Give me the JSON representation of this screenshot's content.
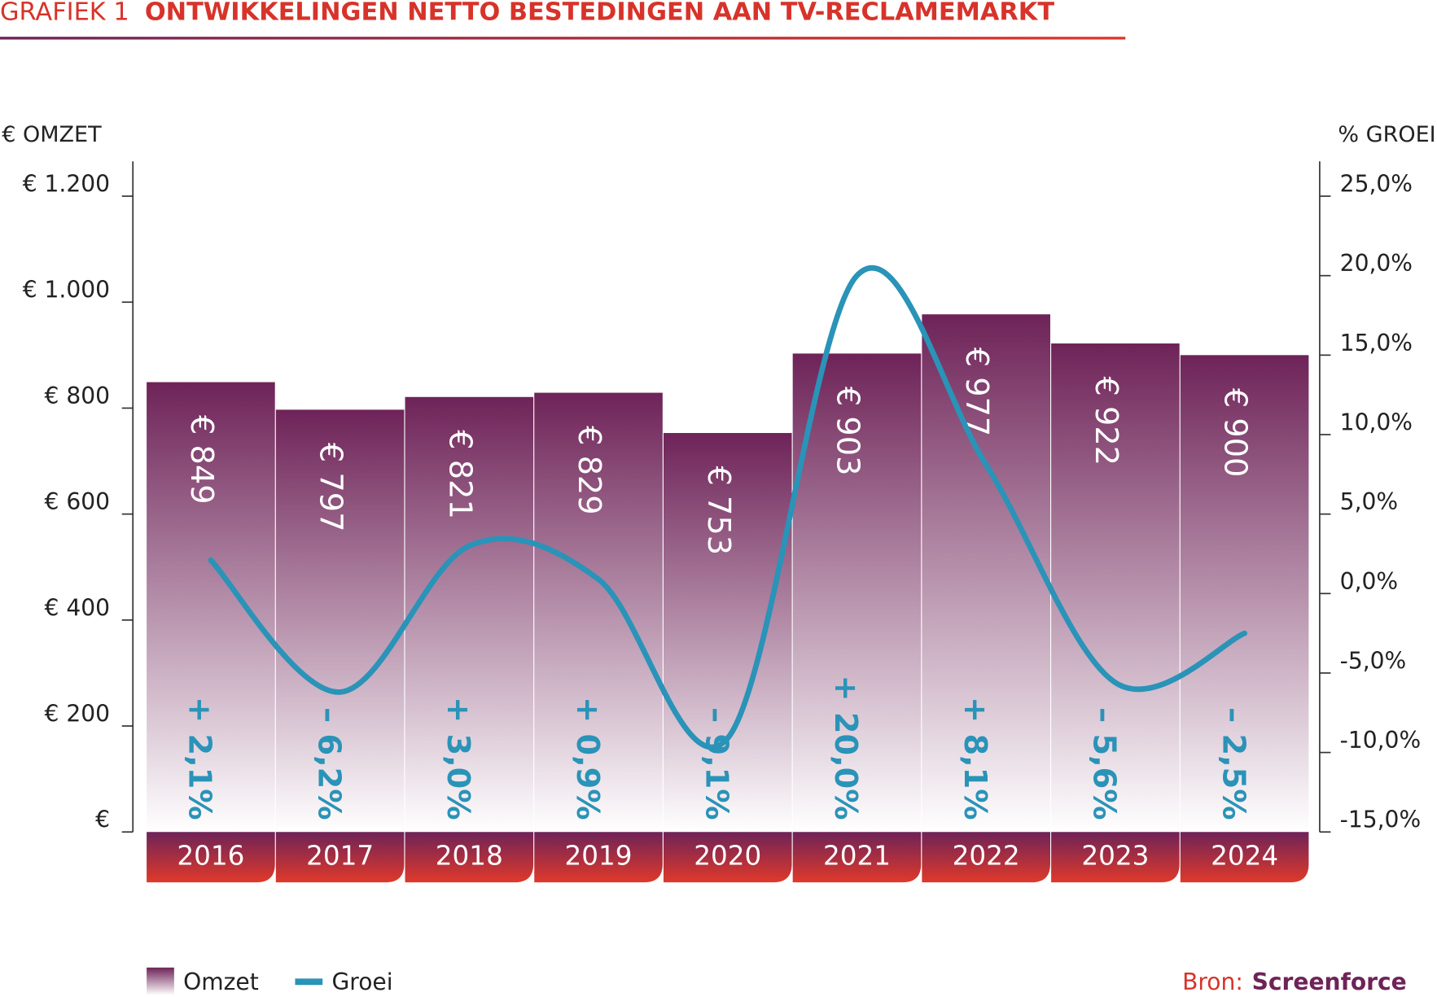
{
  "chart_data": {
    "type": "bar-line",
    "title_prefix": "GRAFIEK 1",
    "title": "ONTWIKKELINGEN NETTO BESTEDINGEN AAN TV-RECLAMEMARKT",
    "y_label": "€ OMZET",
    "y2_label": "% GROEI",
    "source_label": "Bron:",
    "source": "Screenforce",
    "categories": [
      "2016",
      "2017",
      "2018",
      "2019",
      "2020",
      "2021",
      "2022",
      "2023",
      "2024"
    ],
    "series": [
      {
        "name": "Omzet",
        "type": "bar",
        "color": "#6e2358",
        "values": [
          849,
          797,
          821,
          829,
          753,
          903,
          977,
          922,
          900
        ],
        "value_labels": [
          "€ 849",
          "€ 797",
          "€ 821",
          "€ 829",
          "€ 753",
          "€ 903",
          "€ 977",
          "€ 922",
          "€ 900"
        ]
      },
      {
        "name": "Groei",
        "type": "line",
        "axis": "y2",
        "color": "#2a93b8",
        "values": [
          2.1,
          -6.2,
          3.0,
          0.9,
          -9.1,
          20.0,
          8.1,
          -5.6,
          -2.5
        ],
        "value_labels": [
          "+ 2,1%",
          "– 6,2%",
          "+ 3,0%",
          "+ 0,9%",
          "– 9,1%",
          "+ 20,0%",
          "+ 8,1%",
          "– 5,6%",
          "– 2,5%"
        ]
      }
    ],
    "ylim": [
      0,
      1200
    ],
    "yticks": [
      {
        "value": 0,
        "label": "€"
      },
      {
        "value": 200,
        "label": "€ 200"
      },
      {
        "value": 400,
        "label": "€ 400"
      },
      {
        "value": 600,
        "label": "€ 600"
      },
      {
        "value": 800,
        "label": "€ 800"
      },
      {
        "value": 1000,
        "label": "€ 1.000"
      },
      {
        "value": 1200,
        "label": "€ 1.200"
      }
    ],
    "y2lim": [
      -15,
      25
    ],
    "y2ticks": [
      {
        "value": -15,
        "label": "-15,0%"
      },
      {
        "value": -10,
        "label": "-10,0%"
      },
      {
        "value": -5,
        "label": "-5,0%"
      },
      {
        "value": 0,
        "label": "0,0%"
      },
      {
        "value": 5,
        "label": "5,0%"
      },
      {
        "value": 10,
        "label": "10,0%"
      },
      {
        "value": 15,
        "label": "15,0%"
      },
      {
        "value": 20,
        "label": "20,0%"
      },
      {
        "value": 25,
        "label": "25,0%"
      }
    ],
    "grid": false
  }
}
